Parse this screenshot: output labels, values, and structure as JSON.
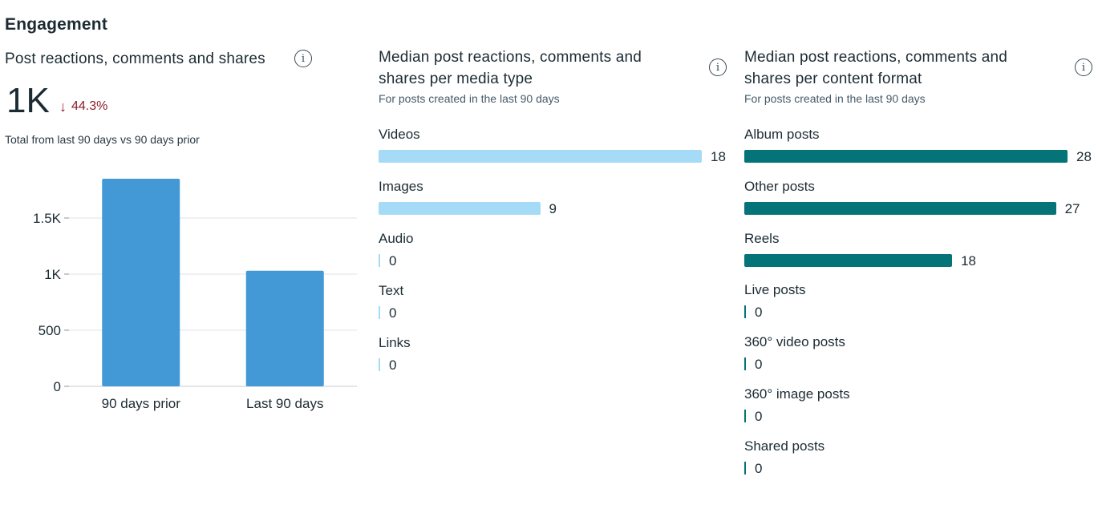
{
  "section_title": "Engagement",
  "colors": {
    "column": "#4399d6",
    "media_bar": "#a6dbf7",
    "format_bar": "#047479",
    "delta_negative": "#8c1c2a"
  },
  "cards": {
    "total": {
      "title": "Post reactions, comments and shares",
      "info_icon": "info-icon",
      "value": "1K",
      "delta_icon": "arrow-down-icon",
      "delta": "44.3%",
      "note": "Total from last 90 days vs 90 days prior"
    },
    "media": {
      "title_line1": "Median post reactions, comments and",
      "title_line2": "shares per media type",
      "subtitle": "For posts created in the last 90 days",
      "info_icon": "info-icon"
    },
    "format": {
      "title_line1": "Median post reactions, comments and",
      "title_line2": "shares per content format",
      "subtitle": "For posts created in the last 90 days",
      "info_icon": "info-icon"
    }
  },
  "chart_data": [
    {
      "type": "bar",
      "categories": [
        "90 days prior",
        "Last 90 days"
      ],
      "values": [
        1850,
        1030
      ],
      "ylim": [
        0,
        2000
      ],
      "yticks": [
        0,
        500,
        1000,
        1500
      ],
      "ytick_labels": [
        "0",
        "500",
        "1K",
        "1.5K"
      ],
      "grid": true
    },
    {
      "type": "bar",
      "orientation": "horizontal",
      "categories": [
        "Videos",
        "Images",
        "Audio",
        "Text",
        "Links"
      ],
      "values": [
        18,
        9,
        0,
        0,
        0
      ],
      "xlim": [
        0,
        18
      ]
    },
    {
      "type": "bar",
      "orientation": "horizontal",
      "categories": [
        "Album posts",
        "Other posts",
        "Reels",
        "Live posts",
        "360° video posts",
        "360° image posts",
        "Shared posts"
      ],
      "values": [
        28,
        27,
        18,
        0,
        0,
        0,
        0
      ],
      "xlim": [
        0,
        28
      ]
    }
  ]
}
